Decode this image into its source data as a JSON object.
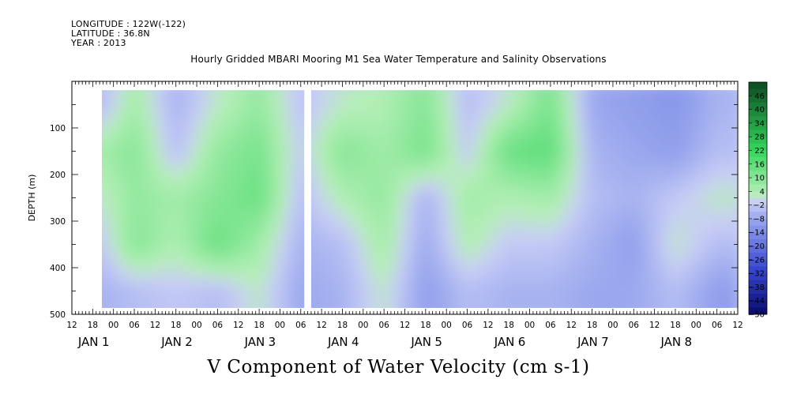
{
  "header": {
    "longitude": "LONGITUDE : 122W(-122)",
    "latitude": "LATITUDE : 36.8N",
    "year": "YEAR : 2013",
    "title": "Hourly Gridded MBARI Mooring M1 Sea Water Temperature and Salinity Observations"
  },
  "chart_data": {
    "type": "heatmap",
    "title": "Hourly Gridded MBARI Mooring M1 Sea Water Temperature and Salinity Observations",
    "xlabel": "V Component of Water Velocity (cm s-1)",
    "ylabel": "DEPTH (m)",
    "xlim_hours_from_jan1_00": [
      -12,
      180
    ],
    "ylim": [
      500,
      0
    ],
    "data_depth_range": [
      20,
      485
    ],
    "y_ticks": [
      100,
      200,
      300,
      400,
      500
    ],
    "x_hour_labels": [
      "12",
      "18",
      "00",
      "06",
      "12",
      "18",
      "00",
      "06",
      "12",
      "18",
      "00",
      "06",
      "12",
      "18",
      "00",
      "06",
      "12",
      "18",
      "00",
      "06",
      "12",
      "18",
      "00",
      "06",
      "12",
      "18",
      "00",
      "06",
      "12",
      "18",
      "00",
      "06",
      "12"
    ],
    "x_day_labels": [
      "JAN 1",
      "JAN 2",
      "JAN 3",
      "JAN 4",
      "JAN 5",
      "JAN 6",
      "JAN 7",
      "JAN 8"
    ],
    "colorbar_labels": [
      "46",
      "40",
      "34",
      "28",
      "22",
      "16",
      "10",
      "4",
      "-2",
      "-8",
      "-14",
      "-20",
      "-26",
      "-32",
      "-38",
      "-44",
      "-50"
    ],
    "colorbar_range": [
      -50,
      52
    ],
    "colorbar_step": 3,
    "colors": {
      "strong_negative": "#0a0a6e",
      "negative": "#3848d0",
      "weak_negative": "#9aa8ee",
      "near_zero": "#c9cef6",
      "weak_positive": "#b6efb8",
      "positive": "#33d65a",
      "strong_positive": "#0c4a22"
    },
    "missing_data_gaps_hours": [
      [
        55,
        57
      ]
    ],
    "v_velocity_profiles_cm_s": {
      "depths_m": [
        50,
        150,
        250,
        350,
        450
      ],
      "times_hours": [
        -3,
        6,
        18,
        30,
        42,
        54,
        66,
        78,
        90,
        102,
        114,
        126,
        138,
        150,
        162,
        174
      ],
      "values": [
        [
          -4,
          6,
          -6,
          2,
          8,
          -3,
          2,
          4,
          10,
          -4,
          2,
          12,
          -8,
          -10,
          -12,
          -6
        ],
        [
          6,
          10,
          -4,
          8,
          12,
          -2,
          10,
          6,
          12,
          -2,
          14,
          16,
          -6,
          -8,
          -10,
          -4
        ],
        [
          2,
          8,
          6,
          10,
          14,
          -4,
          4,
          8,
          -6,
          6,
          4,
          6,
          -4,
          -6,
          -2,
          2
        ],
        [
          -2,
          10,
          4,
          14,
          6,
          -6,
          -4,
          6,
          -8,
          4,
          -2,
          -2,
          -6,
          -10,
          2,
          -4
        ],
        [
          -6,
          -4,
          -2,
          -4,
          2,
          -8,
          -6,
          2,
          -10,
          -4,
          -6,
          -6,
          -8,
          -8,
          -4,
          -10
        ]
      ]
    }
  }
}
